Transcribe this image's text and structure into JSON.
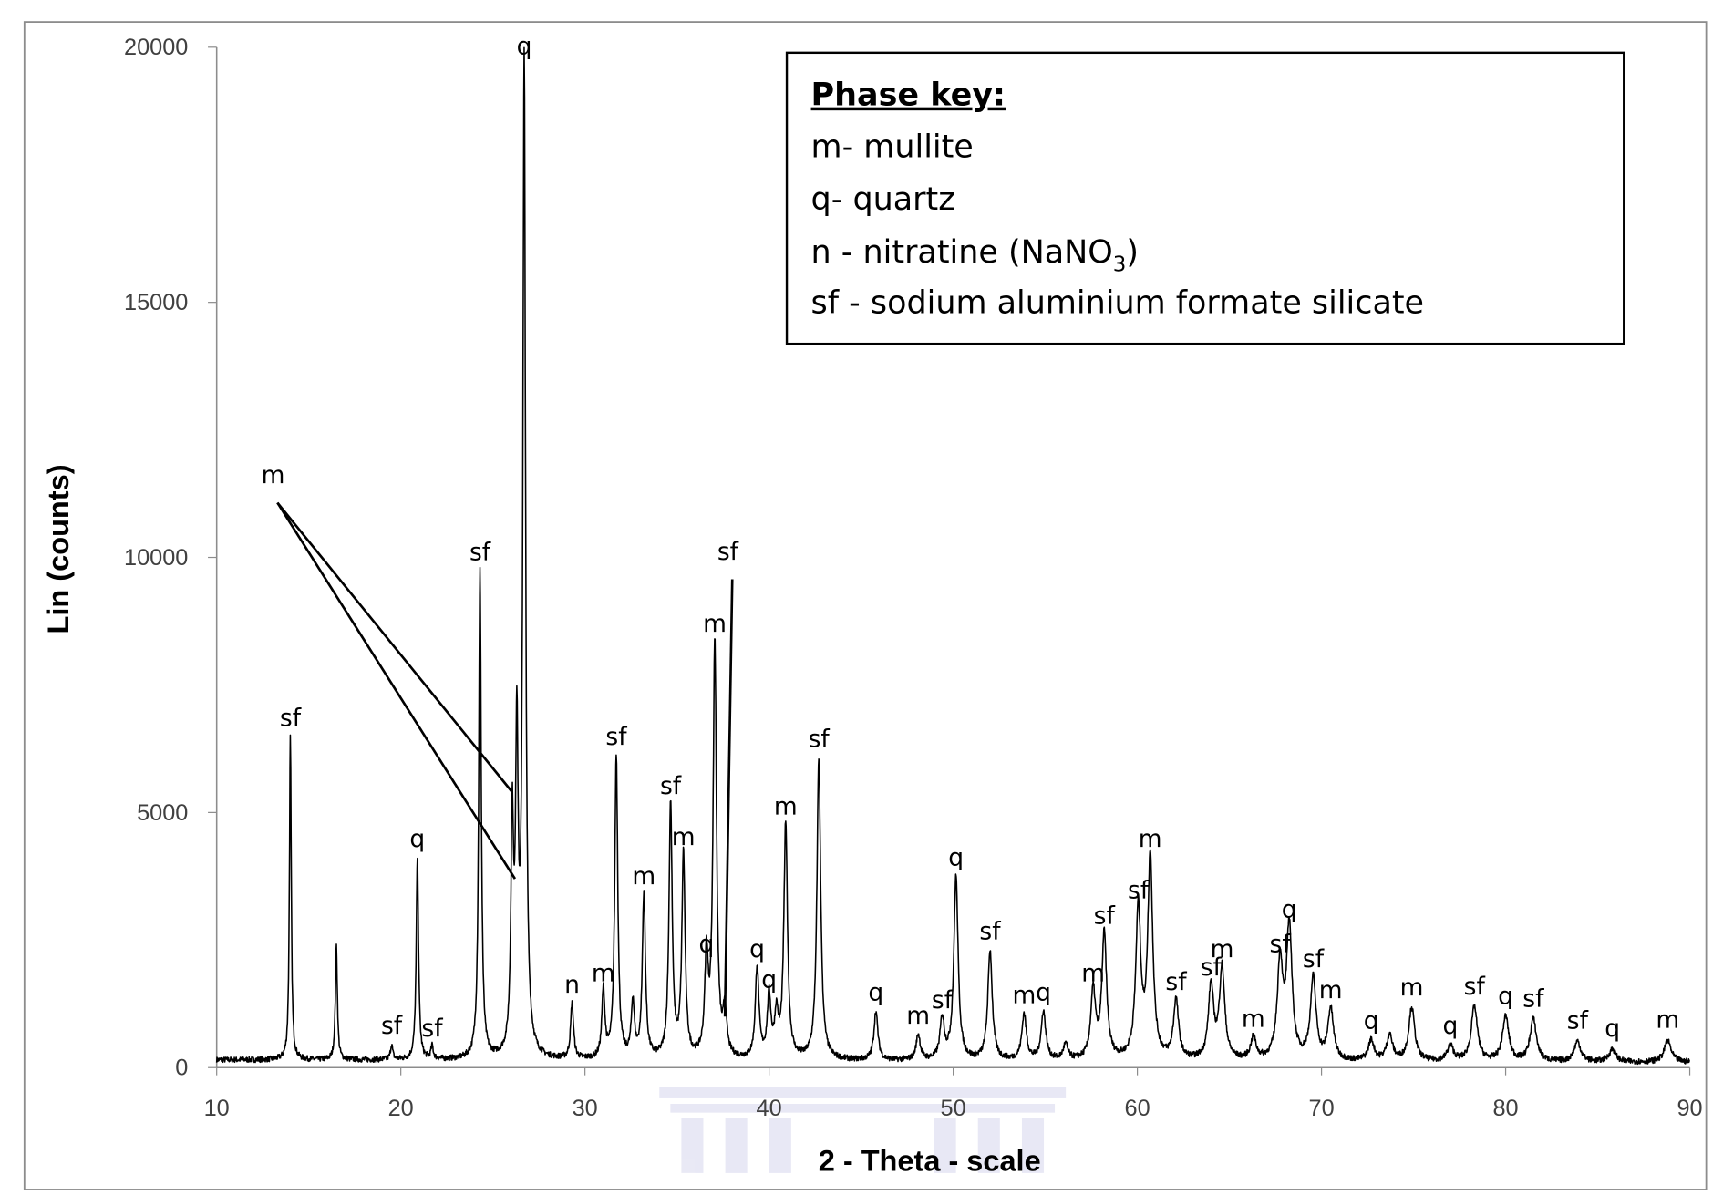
{
  "chart_data": {
    "type": "line",
    "xlabel": "2 - Theta - scale",
    "ylabel": "Lin (counts)",
    "xlim": [
      10,
      90
    ],
    "ylim": [
      0,
      20000
    ],
    "xticks": [
      10,
      20,
      30,
      40,
      50,
      60,
      70,
      80,
      90
    ],
    "yticks": [
      0,
      5000,
      10000,
      15000,
      20000
    ],
    "grid": false,
    "line_color": "#000000",
    "background_counts": 150,
    "legend": {
      "placement": "top-right",
      "title": "Phase key:",
      "entries": [
        "m- mullite",
        "q- quartz",
        "n - nitratine (NaNO",
        "sf - sodium aluminium formate silicate"
      ],
      "subscript": "3",
      "close_paren": ")"
    },
    "peaks": [
      {
        "x": 14.0,
        "y": 6330,
        "label": "sf"
      },
      {
        "x": 16.5,
        "y": 2240,
        "label": ""
      },
      {
        "x": 19.5,
        "y": 300,
        "label": "sf"
      },
      {
        "x": 20.9,
        "y": 3960,
        "label": "q"
      },
      {
        "x": 21.7,
        "y": 250,
        "label": "sf"
      },
      {
        "x": 24.3,
        "y": 9580,
        "label": "sf"
      },
      {
        "x": 26.05,
        "y": 4400,
        "label": ""
      },
      {
        "x": 26.3,
        "y": 6000,
        "label": ""
      },
      {
        "x": 26.7,
        "y": 19500,
        "label": "q"
      },
      {
        "x": 29.3,
        "y": 1100,
        "label": "n"
      },
      {
        "x": 31.0,
        "y": 1330,
        "label": "m"
      },
      {
        "x": 31.7,
        "y": 5960,
        "label": "sf"
      },
      {
        "x": 32.6,
        "y": 1100,
        "label": ""
      },
      {
        "x": 33.2,
        "y": 3230,
        "label": "m"
      },
      {
        "x": 34.65,
        "y": 5000,
        "label": "sf"
      },
      {
        "x": 35.35,
        "y": 4000,
        "label": "m"
      },
      {
        "x": 36.6,
        "y": 1900,
        "label": "q"
      },
      {
        "x": 37.05,
        "y": 8180,
        "label": "m"
      },
      {
        "x": 37.6,
        "y": 900,
        "label": ""
      },
      {
        "x": 39.35,
        "y": 1800,
        "label": "q"
      },
      {
        "x": 40.0,
        "y": 1200,
        "label": "q"
      },
      {
        "x": 40.4,
        "y": 800,
        "label": ""
      },
      {
        "x": 40.9,
        "y": 4600,
        "label": "m"
      },
      {
        "x": 42.7,
        "y": 5920,
        "label": "sf"
      },
      {
        "x": 45.8,
        "y": 950,
        "label": "q"
      },
      {
        "x": 48.1,
        "y": 500,
        "label": "m"
      },
      {
        "x": 49.4,
        "y": 800,
        "label": "sf"
      },
      {
        "x": 50.15,
        "y": 3600,
        "label": "q"
      },
      {
        "x": 52.0,
        "y": 2150,
        "label": "sf"
      },
      {
        "x": 53.85,
        "y": 900,
        "label": "m"
      },
      {
        "x": 54.9,
        "y": 950,
        "label": "q"
      },
      {
        "x": 56.1,
        "y": 300,
        "label": ""
      },
      {
        "x": 57.6,
        "y": 1330,
        "label": "m"
      },
      {
        "x": 58.2,
        "y": 2450,
        "label": "sf"
      },
      {
        "x": 60.05,
        "y": 2950,
        "label": "sf"
      },
      {
        "x": 60.7,
        "y": 3960,
        "label": "m"
      },
      {
        "x": 62.1,
        "y": 1160,
        "label": "sf"
      },
      {
        "x": 64.0,
        "y": 1440,
        "label": "sf"
      },
      {
        "x": 64.6,
        "y": 1800,
        "label": "m"
      },
      {
        "x": 66.3,
        "y": 430,
        "label": "m"
      },
      {
        "x": 67.75,
        "y": 1900,
        "label": "sf"
      },
      {
        "x": 68.25,
        "y": 2580,
        "label": "q"
      },
      {
        "x": 69.55,
        "y": 1600,
        "label": "sf"
      },
      {
        "x": 70.5,
        "y": 1000,
        "label": "m"
      },
      {
        "x": 72.7,
        "y": 400,
        "label": "q"
      },
      {
        "x": 73.7,
        "y": 500,
        "label": ""
      },
      {
        "x": 74.9,
        "y": 1050,
        "label": "m"
      },
      {
        "x": 77.0,
        "y": 300,
        "label": "q"
      },
      {
        "x": 78.3,
        "y": 1070,
        "label": "sf"
      },
      {
        "x": 80.0,
        "y": 880,
        "label": "q"
      },
      {
        "x": 81.5,
        "y": 830,
        "label": "sf"
      },
      {
        "x": 83.9,
        "y": 400,
        "label": "sf"
      },
      {
        "x": 85.8,
        "y": 250,
        "label": "q"
      },
      {
        "x": 88.8,
        "y": 420,
        "label": "m"
      }
    ],
    "leader_annotations": [
      {
        "label": "m",
        "from": [
          13.3,
          11200
        ],
        "to": [
          [
            26.05,
            5400
          ],
          [
            26.2,
            3700
          ]
        ]
      },
      {
        "label": "sf",
        "from": [
          38.0,
          9700
        ],
        "to": [
          [
            37.6,
            1000
          ]
        ]
      }
    ]
  }
}
